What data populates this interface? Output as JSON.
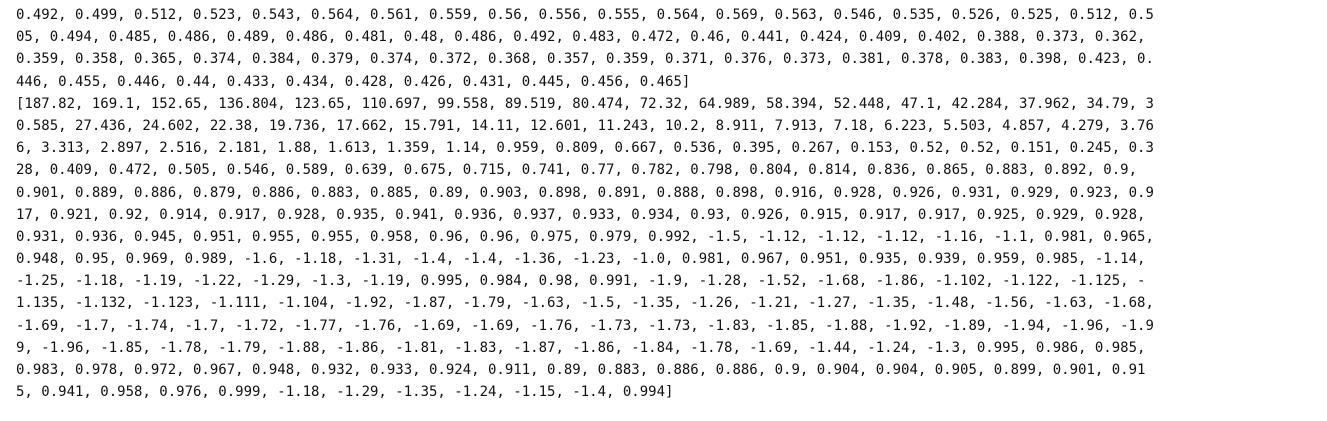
{
  "output": {
    "lines": [
      "0.492, 0.499, 0.512, 0.523, 0.543, 0.564, 0.561, 0.559, 0.56, 0.556, 0.555, 0.564, 0.569, 0.563, 0.546, 0.535, 0.526, 0.525, 0.512, 0.5",
      "05, 0.494, 0.485, 0.486, 0.489, 0.486, 0.481, 0.48, 0.486, 0.492, 0.483, 0.472, 0.46, 0.441, 0.424, 0.409, 0.402, 0.388, 0.373, 0.362,",
      "0.359, 0.358, 0.365, 0.374, 0.384, 0.379, 0.374, 0.372, 0.368, 0.357, 0.359, 0.371, 0.376, 0.373, 0.381, 0.378, 0.383, 0.398, 0.423, 0.",
      "446, 0.455, 0.446, 0.44, 0.433, 0.434, 0.428, 0.426, 0.431, 0.445, 0.456, 0.465]",
      "[187.82, 169.1, 152.65, 136.804, 123.65, 110.697, 99.558, 89.519, 80.474, 72.32, 64.989, 58.394, 52.448, 47.1, 42.284, 37.962, 34.79, 3",
      "0.585, 27.436, 24.602, 22.38, 19.736, 17.662, 15.791, 14.11, 12.601, 11.243, 10.2, 8.911, 7.913, 7.18, 6.223, 5.503, 4.857, 4.279, 3.76",
      "6, 3.313, 2.897, 2.516, 2.181, 1.88, 1.613, 1.359, 1.14, 0.959, 0.809, 0.667, 0.536, 0.395, 0.267, 0.153, 0.52, 0.52, 0.151, 0.245, 0.3",
      "28, 0.409, 0.472, 0.505, 0.546, 0.589, 0.639, 0.675, 0.715, 0.741, 0.77, 0.782, 0.798, 0.804, 0.814, 0.836, 0.865, 0.883, 0.892, 0.9,",
      "0.901, 0.889, 0.886, 0.879, 0.886, 0.883, 0.885, 0.89, 0.903, 0.898, 0.891, 0.888, 0.898, 0.916, 0.928, 0.926, 0.931, 0.929, 0.923, 0.9",
      "17, 0.921, 0.92, 0.914, 0.917, 0.928, 0.935, 0.941, 0.936, 0.937, 0.933, 0.934, 0.93, 0.926, 0.915, 0.917, 0.917, 0.925, 0.929, 0.928,",
      "0.931, 0.936, 0.945, 0.951, 0.955, 0.955, 0.958, 0.96, 0.96, 0.975, 0.979, 0.992, -1.5, -1.12, -1.12, -1.12, -1.16, -1.1, 0.981, 0.965,",
      "0.948, 0.95, 0.969, 0.989, -1.6, -1.18, -1.31, -1.4, -1.4, -1.36, -1.23, -1.0, 0.981, 0.967, 0.951, 0.935, 0.939, 0.959, 0.985, -1.14,",
      "-1.25, -1.18, -1.19, -1.22, -1.29, -1.3, -1.19, 0.995, 0.984, 0.98, 0.991, -1.9, -1.28, -1.52, -1.68, -1.86, -1.102, -1.122, -1.125, -",
      "1.135, -1.132, -1.123, -1.111, -1.104, -1.92, -1.87, -1.79, -1.63, -1.5, -1.35, -1.26, -1.21, -1.27, -1.35, -1.48, -1.56, -1.63, -1.68,",
      "-1.69, -1.7, -1.74, -1.7, -1.72, -1.77, -1.76, -1.69, -1.69, -1.76, -1.73, -1.73, -1.83, -1.85, -1.88, -1.92, -1.89, -1.94, -1.96, -1.9",
      "9, -1.96, -1.85, -1.78, -1.79, -1.88, -1.86, -1.81, -1.83, -1.87, -1.86, -1.84, -1.78, -1.69, -1.44, -1.24, -1.3, 0.995, 0.986, 0.985,",
      "0.983, 0.978, 0.972, 0.967, 0.948, 0.932, 0.933, 0.924, 0.911, 0.89, 0.883, 0.886, 0.886, 0.9, 0.904, 0.904, 0.905, 0.899, 0.901, 0.91",
      "5, 0.941, 0.958, 0.976, 0.999, -1.18, -1.29, -1.35, -1.24, -1.15, -1.4, 0.994]"
    ]
  }
}
